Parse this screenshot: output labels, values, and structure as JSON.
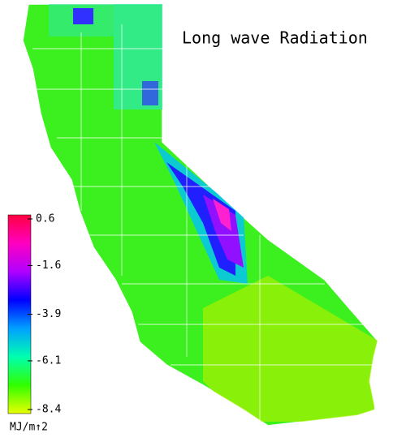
{
  "map": {
    "title": "Long wave Radiation",
    "colorbar": {
      "lim": [
        -8.4,
        0.6
      ],
      "ticks": [
        0.6,
        -1.6,
        -3.9,
        -6.1,
        -8.4
      ],
      "unit": "MJ/m↑2",
      "colors": [
        "#e8ff00",
        "#30ff00",
        "#00ffb0",
        "#00a0ff",
        "#0000ff",
        "#b000ff",
        "#ff00c0",
        "#ff0040"
      ]
    }
  }
}
